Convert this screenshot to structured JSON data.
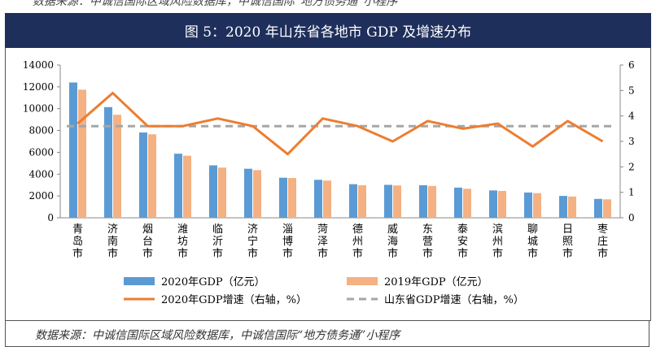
{
  "header": {
    "title": "图 5：2020 年山东省各地市 GDP 及增速分布",
    "top_source_cut": "数据来源：中诚信国际区域风险数据库，中诚信国际“地方债务通”小程序",
    "source": "数据来源：中诚信国际区域风险数据库，中诚信国际“地方债务通”小程序"
  },
  "colors": {
    "header_bg": "#1f2f5c",
    "bar_2020": "#5b9bd5",
    "bar_2019": "#f4b183",
    "line_growth": "#ed7d31",
    "line_province": "#a6a6a6"
  },
  "chart_data": {
    "type": "bar",
    "title": "2020 年山东省各地市 GDP 及增速分布",
    "categories": [
      "青岛市",
      "济南市",
      "烟台市",
      "潍坊市",
      "临沂市",
      "济宁市",
      "淄博市",
      "菏泽市",
      "德州市",
      "威海市",
      "东营市",
      "泰安市",
      "滨州市",
      "聊城市",
      "日照市",
      "枣庄市"
    ],
    "series": [
      {
        "name": "2020年GDP（亿元）",
        "kind": "bar",
        "axis": "left",
        "values": [
          12400,
          10141,
          7816,
          5872,
          4805,
          4494,
          3673,
          3483,
          3079,
          3018,
          2981,
          2767,
          2508,
          2317,
          2006,
          1733
        ]
      },
      {
        "name": "2019年GDP（亿元）",
        "kind": "bar",
        "axis": "left",
        "values": [
          11741,
          9443,
          7653,
          5689,
          4600,
          4370,
          3642,
          3410,
          2990,
          2964,
          2916,
          2663,
          2457,
          2259,
          1949,
          1694
        ]
      },
      {
        "name": "2020年GDP增速（右轴，%）",
        "kind": "line",
        "axis": "right",
        "values": [
          3.7,
          4.9,
          3.6,
          3.6,
          3.9,
          3.6,
          2.5,
          3.9,
          3.6,
          3.0,
          3.8,
          3.5,
          3.7,
          2.8,
          3.8,
          3.0
        ]
      },
      {
        "name": "山东省GDP增速（右轴，%）",
        "kind": "line-dashed",
        "axis": "right",
        "values": [
          3.6,
          3.6,
          3.6,
          3.6,
          3.6,
          3.6,
          3.6,
          3.6,
          3.6,
          3.6,
          3.6,
          3.6,
          3.6,
          3.6,
          3.6,
          3.6
        ]
      }
    ],
    "yleft": {
      "min": 0,
      "max": 14000,
      "ticks": [
        0,
        2000,
        4000,
        6000,
        8000,
        10000,
        12000,
        14000
      ]
    },
    "yright": {
      "min": 0,
      "max": 6,
      "ticks": [
        0,
        1,
        2,
        3,
        4,
        5,
        6
      ]
    },
    "legend_position": "bottom"
  }
}
